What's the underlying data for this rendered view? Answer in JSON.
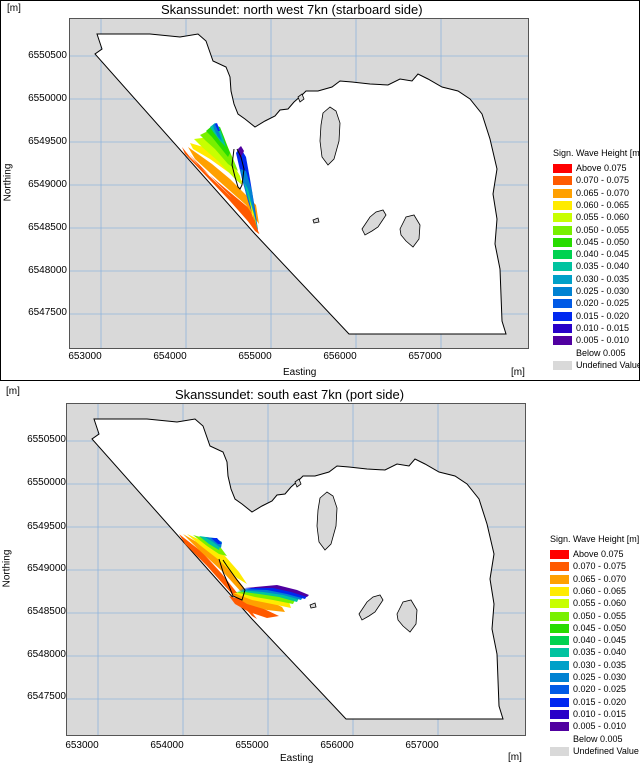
{
  "colors": {
    "land": "#d9d9d9",
    "water": "#ffffff",
    "grid": "#8fb4dc"
  },
  "panels": [
    {
      "title": "Skanssundet: north west 7kn (starboard side)",
      "unit_y": "[m]",
      "unit_x": "[m]",
      "ylabel": "Northing",
      "xlabel": "Easting",
      "yticks": [
        "6550500",
        "6550000",
        "6549500",
        "6549000",
        "6548500",
        "6548000",
        "6547500"
      ],
      "xticks": [
        "653000",
        "654000",
        "655000",
        "656000",
        "657000"
      ]
    },
    {
      "title": "Skanssundet: south east 7kn (port side)",
      "unit_y": "[m]",
      "unit_x": "[m]",
      "ylabel": "Northing",
      "xlabel": "Easting",
      "yticks": [
        "6550500",
        "6550000",
        "6549500",
        "6549000",
        "6548500",
        "6548000",
        "6547500"
      ],
      "xticks": [
        "653000",
        "654000",
        "655000",
        "656000",
        "657000"
      ]
    }
  ],
  "legend": {
    "title": "Sign. Wave Height [m]",
    "items": [
      {
        "label": "Above  0.075",
        "color": "#ff0000"
      },
      {
        "label": "0.070 - 0.075",
        "color": "#ff5a00"
      },
      {
        "label": "0.065 - 0.070",
        "color": "#ffa000"
      },
      {
        "label": "0.060 - 0.065",
        "color": "#ffeb00"
      },
      {
        "label": "0.055 - 0.060",
        "color": "#c8ff00"
      },
      {
        "label": "0.050 - 0.055",
        "color": "#78f000"
      },
      {
        "label": "0.045 - 0.050",
        "color": "#28dc00"
      },
      {
        "label": "0.040 - 0.045",
        "color": "#00d250"
      },
      {
        "label": "0.035 - 0.040",
        "color": "#00c3a0"
      },
      {
        "label": "0.030 - 0.035",
        "color": "#00a0c8"
      },
      {
        "label": "0.025 - 0.030",
        "color": "#0082d2"
      },
      {
        "label": "0.020 - 0.025",
        "color": "#005ae6"
      },
      {
        "label": "0.015 - 0.020",
        "color": "#0028f0"
      },
      {
        "label": "0.010 - 0.015",
        "color": "#2800c8"
      },
      {
        "label": "0.005 - 0.010",
        "color": "#5000a0"
      },
      {
        "label": "Below  0.005",
        "color": "#ffffff"
      },
      {
        "label": "Undefined Value",
        "color": "#d9d9d9"
      }
    ]
  }
}
